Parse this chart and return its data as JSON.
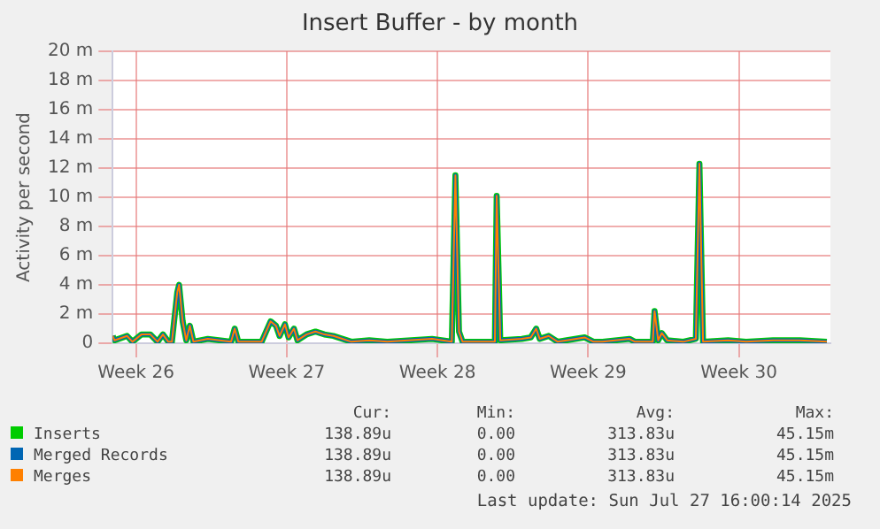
{
  "chart_data": {
    "type": "line",
    "title": "Insert Buffer - by month",
    "ylabel": "Activity per second",
    "x": [
      "2025-06-24T08:00",
      "2025-06-24T10:00",
      "2025-06-25T00:00",
      "2025-06-25T06:00",
      "2025-06-25T16:00",
      "2025-06-26T02:00",
      "2025-06-26T10:00",
      "2025-06-26T16:00",
      "2025-06-26T22:00",
      "2025-06-27T02:00",
      "2025-06-27T08:00",
      "2025-06-27T10:00",
      "2025-06-27T14:00",
      "2025-06-27T18:00",
      "2025-06-27T22:00",
      "2025-06-28T02:00",
      "2025-06-28T18:00",
      "2025-06-29T20:00",
      "2025-06-30T00:00",
      "2025-06-30T04:00",
      "2025-07-01T06:00",
      "2025-07-01T16:00",
      "2025-07-01T22:00",
      "2025-07-02T02:00",
      "2025-07-02T08:00",
      "2025-07-02T12:00",
      "2025-07-02T18:00",
      "2025-07-02T22:00",
      "2025-07-03T08:00",
      "2025-07-03T18:00",
      "2025-07-04T04:00",
      "2025-07-04T14:00",
      "2025-07-05T00:00",
      "2025-07-05T10:00",
      "2025-07-06T06:00",
      "2025-07-07T02:00",
      "2025-07-09T04:00",
      "2025-07-10T02:00",
      "2025-07-10T06:00",
      "2025-07-10T10:00",
      "2025-07-10T14:00",
      "2025-07-12T02:00",
      "2025-07-12T04:00",
      "2025-07-12T08:00",
      "2025-07-13T08:00",
      "2025-07-13T18:00",
      "2025-07-14T00:00",
      "2025-07-14T04:00",
      "2025-07-14T14:00",
      "2025-07-15T00:00",
      "2025-07-15T10:00",
      "2025-07-16T06:00",
      "2025-07-16T16:00",
      "2025-07-17T02:00",
      "2025-07-18T08:00",
      "2025-07-18T14:00",
      "2025-07-19T10:00",
      "2025-07-19T12:00",
      "2025-07-19T16:00",
      "2025-07-19T20:00",
      "2025-07-20T02:00",
      "2025-07-20T20:00",
      "2025-07-21T10:00",
      "2025-07-21T14:00",
      "2025-07-21T18:00",
      "2025-07-22T22:00",
      "2025-07-23T18:00",
      "2025-07-25T00:00",
      "2025-07-26T06:00",
      "2025-07-27T12:00"
    ],
    "series": [
      {
        "name": "Inserts",
        "color": "#00cc00",
        "values": [
          0.5,
          0.2,
          0.5,
          0.1,
          0.6,
          0.6,
          0.1,
          0.6,
          0.1,
          0.1,
          3.5,
          4.0,
          1.5,
          0.2,
          1.2,
          0.1,
          0.3,
          0.1,
          1.0,
          0.1,
          0.1,
          1.5,
          1.2,
          0.5,
          1.3,
          0.4,
          1.0,
          0.2,
          0.6,
          0.8,
          0.6,
          0.5,
          0.3,
          0.1,
          0.2,
          0.1,
          0.3,
          0.1,
          11.5,
          0.8,
          0.1,
          0.1,
          10.1,
          0.2,
          0.3,
          0.4,
          1.0,
          0.3,
          0.5,
          0.1,
          0.2,
          0.4,
          0.1,
          0.1,
          0.3,
          0.1,
          0.1,
          2.2,
          0.2,
          0.7,
          0.2,
          0.1,
          0.3,
          12.3,
          0.1,
          0.2,
          0.1,
          0.2,
          0.2,
          0.1
        ]
      },
      {
        "name": "Merged Records",
        "color": "#0066b3",
        "values": [
          0.5,
          0.2,
          0.5,
          0.1,
          0.6,
          0.6,
          0.1,
          0.6,
          0.1,
          0.1,
          3.5,
          4.0,
          1.5,
          0.2,
          1.2,
          0.1,
          0.3,
          0.1,
          1.0,
          0.1,
          0.1,
          1.5,
          1.2,
          0.5,
          1.3,
          0.4,
          1.0,
          0.2,
          0.6,
          0.8,
          0.6,
          0.5,
          0.3,
          0.1,
          0.2,
          0.1,
          0.3,
          0.1,
          11.5,
          0.8,
          0.1,
          0.1,
          10.1,
          0.2,
          0.3,
          0.4,
          1.0,
          0.3,
          0.5,
          0.1,
          0.2,
          0.4,
          0.1,
          0.1,
          0.3,
          0.1,
          0.1,
          2.2,
          0.2,
          0.7,
          0.2,
          0.1,
          0.3,
          12.3,
          0.1,
          0.2,
          0.1,
          0.2,
          0.2,
          0.1
        ]
      },
      {
        "name": "Merges",
        "color": "#ff8000",
        "values": [
          0.5,
          0.2,
          0.5,
          0.1,
          0.6,
          0.6,
          0.1,
          0.6,
          0.1,
          0.1,
          3.5,
          4.0,
          1.5,
          0.2,
          1.2,
          0.1,
          0.3,
          0.1,
          1.0,
          0.1,
          0.1,
          1.5,
          1.2,
          0.5,
          1.3,
          0.4,
          1.0,
          0.2,
          0.6,
          0.8,
          0.6,
          0.5,
          0.3,
          0.1,
          0.2,
          0.1,
          0.3,
          0.1,
          11.5,
          0.8,
          0.1,
          0.1,
          10.1,
          0.2,
          0.3,
          0.4,
          1.0,
          0.3,
          0.5,
          0.1,
          0.2,
          0.4,
          0.1,
          0.1,
          0.3,
          0.1,
          0.1,
          2.2,
          0.2,
          0.7,
          0.2,
          0.1,
          0.3,
          12.3,
          0.1,
          0.2,
          0.1,
          0.2,
          0.2,
          0.1
        ]
      }
    ],
    "xlim": [
      "2025-06-24T08:00",
      "2025-07-27T16:00"
    ],
    "xticks": [
      {
        "value": "2025-06-25T10:00",
        "label": "Week 26"
      },
      {
        "value": "2025-07-02T10:00",
        "label": "Week 27"
      },
      {
        "value": "2025-07-09T10:00",
        "label": "Week 28"
      },
      {
        "value": "2025-07-16T10:00",
        "label": "Week 29"
      },
      {
        "value": "2025-07-23T10:00",
        "label": "Week 30"
      }
    ],
    "ylim": [
      0,
      20
    ],
    "yticks": [
      0,
      {
        "value": 2,
        "label": "2 m"
      },
      {
        "value": 4,
        "label": "4 m"
      },
      {
        "value": 6,
        "label": "6 m"
      },
      {
        "value": 8,
        "label": "8 m"
      },
      {
        "value": 10,
        "label": "10 m"
      },
      {
        "value": 12,
        "label": "12 m"
      },
      {
        "value": 14,
        "label": "14 m"
      },
      {
        "value": 16,
        "label": "16 m"
      },
      {
        "value": 18,
        "label": "18 m"
      },
      {
        "value": 20,
        "label": "20 m"
      }
    ],
    "grid": true,
    "legend": "bottom",
    "marker": "none",
    "line_style": "solid",
    "annotations": [
      "Cur:",
      "Min:",
      "Avg:",
      "Max:",
      "138.89u",
      "0.00",
      "313.83u",
      "45.15m",
      "138.89u",
      "0.00",
      "313.83u",
      "45.15m",
      "138.89u",
      "0.00",
      "313.83u",
      "45.15m",
      "Last update: Sun Jul 27 16:00:14 2025"
    ]
  }
}
